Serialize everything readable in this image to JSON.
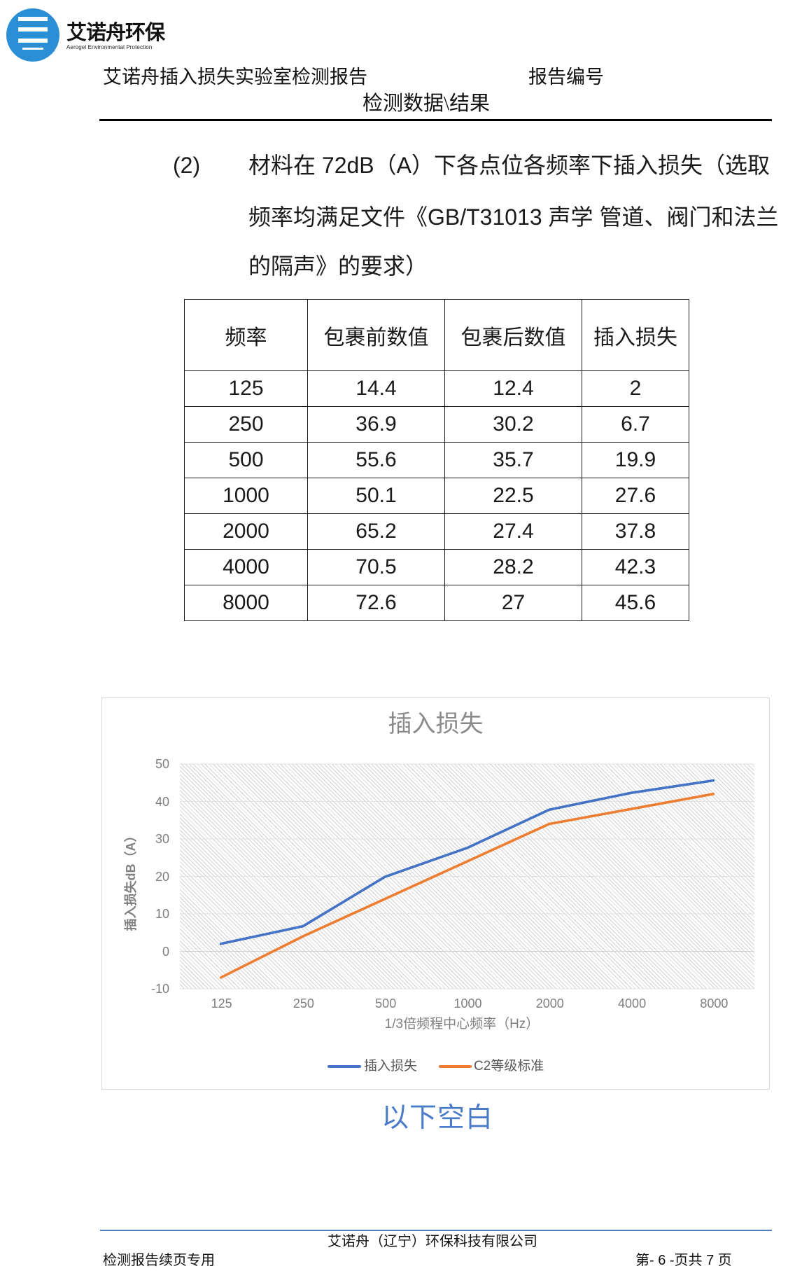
{
  "header": {
    "logo_icon": "company-logo-icon",
    "brand_name": "艾诺舟环保",
    "brand_tagline": "Aerogel Environmental Protection",
    "report_title": "艾诺舟插入损失实验室检测报告",
    "report_number_label": "报告编号",
    "section_title": "检测数据\\结果"
  },
  "paragraph": {
    "index": "(2)",
    "lines": [
      "材料在 72dB（A）下各点位各频率下插入损失（选取",
      "频率均满足文件《GB/T31013 声学 管道、阀门和法兰",
      "的隔声》的要求）"
    ]
  },
  "table": {
    "headers": [
      "频率",
      "包裹前数值",
      "包裹后数值",
      "插入损失"
    ],
    "rows": [
      [
        "125",
        "14.4",
        "12.4",
        "2"
      ],
      [
        "250",
        "36.9",
        "30.2",
        "6.7"
      ],
      [
        "500",
        "55.6",
        "35.7",
        "19.9"
      ],
      [
        "1000",
        "50.1",
        "22.5",
        "27.6"
      ],
      [
        "2000",
        "65.2",
        "27.4",
        "37.8"
      ],
      [
        "4000",
        "70.5",
        "28.2",
        "42.3"
      ],
      [
        "8000",
        "72.6",
        "27",
        "45.6"
      ]
    ]
  },
  "chart_data": {
    "type": "line",
    "title": "插入损失",
    "xlabel": "1/3倍频程中心频率（Hz）",
    "ylabel": "插入损失dB（A）",
    "categories": [
      "125",
      "250",
      "500",
      "1000",
      "2000",
      "4000",
      "8000"
    ],
    "series": [
      {
        "name": "插入损失",
        "values": [
          2,
          6.7,
          19.9,
          27.6,
          37.8,
          42.3,
          45.6
        ],
        "color": "#4472C4"
      },
      {
        "name": "C2等级标准",
        "values": [
          -7,
          4,
          14,
          24,
          34,
          38,
          42
        ],
        "color": "#ED7D31"
      }
    ],
    "ylim": [
      -10,
      50
    ],
    "y_ticks": [
      50,
      40,
      30,
      20,
      10,
      0,
      -10
    ],
    "grid": true,
    "legend_position": "bottom",
    "plot_background": "diagonal-hatch"
  },
  "blank_note": "以下空白",
  "footer": {
    "company": "艾诺舟（辽宁）环保科技有限公司",
    "left_note": "检测报告续页专用",
    "page_info": "第- 6 -页共 7 页"
  },
  "colors": {
    "logo_blue": "#2B8FD6",
    "accent_blue": "#4472C4",
    "accent_orange": "#ED7D31",
    "footer_rule": "#4F81BD",
    "blank_note": "#4A7BC8"
  }
}
